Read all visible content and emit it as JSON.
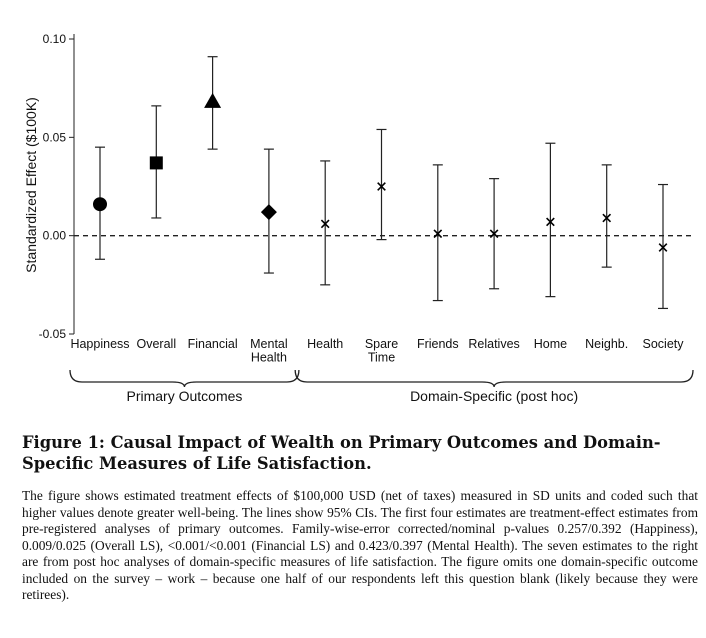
{
  "chart_data": {
    "type": "scatter",
    "subtype": "point-estimate-with-95pct-CI",
    "ylabel": "Standardized Effect ($100K)",
    "xlabel": "",
    "ylim": [
      -0.05,
      0.1
    ],
    "yticks": [
      -0.05,
      0.0,
      0.05,
      0.1
    ],
    "ytick_labels": [
      "-0.05",
      "0.00",
      "0.05",
      "0.10"
    ],
    "reference_line": 0.0,
    "categories": [
      {
        "label": [
          "Happiness"
        ],
        "estimate": 0.016,
        "ci": [
          -0.012,
          0.045
        ],
        "marker": "circle"
      },
      {
        "label": [
          "Overall"
        ],
        "estimate": 0.037,
        "ci": [
          0.009,
          0.066
        ],
        "marker": "square"
      },
      {
        "label": [
          "Financial"
        ],
        "estimate": 0.068,
        "ci": [
          0.044,
          0.091
        ],
        "marker": "triangle"
      },
      {
        "label": [
          "Mental",
          "Health"
        ],
        "estimate": 0.012,
        "ci": [
          -0.019,
          0.044
        ],
        "marker": "diamond"
      },
      {
        "label": [
          "Health"
        ],
        "estimate": 0.006,
        "ci": [
          -0.025,
          0.038
        ],
        "marker": "x"
      },
      {
        "label": [
          "Spare",
          "Time"
        ],
        "estimate": 0.025,
        "ci": [
          -0.002,
          0.054
        ],
        "marker": "x"
      },
      {
        "label": [
          "Friends"
        ],
        "estimate": 0.001,
        "ci": [
          -0.033,
          0.036
        ],
        "marker": "x"
      },
      {
        "label": [
          "Relatives"
        ],
        "estimate": 0.001,
        "ci": [
          -0.027,
          0.029
        ],
        "marker": "x"
      },
      {
        "label": [
          "Home"
        ],
        "estimate": 0.007,
        "ci": [
          -0.031,
          0.047
        ],
        "marker": "x"
      },
      {
        "label": [
          "Neighb."
        ],
        "estimate": 0.009,
        "ci": [
          -0.016,
          0.036
        ],
        "marker": "x"
      },
      {
        "label": [
          "Society"
        ],
        "estimate": -0.006,
        "ci": [
          -0.037,
          0.026
        ],
        "marker": "x"
      }
    ],
    "groups": [
      {
        "label": "Primary Outcomes",
        "from": 0,
        "to": 3
      },
      {
        "label": "Domain-Specific (post hoc)",
        "from": 4,
        "to": 10
      }
    ]
  },
  "caption": {
    "title": "Figure 1: Causal Impact of Wealth on Primary Outcomes and Domain-Specific Measures of Life Satisfaction.",
    "description": "The figure shows estimated treatment effects of $100,000 USD (net of taxes) measured in SD units and coded such that higher values denote greater well-being. The lines show 95% CIs. The first four estimates are treatment-effect estimates from pre-registered analyses of primary outcomes. Family-wise-error corrected/nominal p-values 0.257/0.392 (Happiness), 0.009/0.025 (Overall LS), <0.001/<0.001 (Financial LS) and 0.423/0.397 (Mental Health). The seven estimates to the right are from post hoc analyses of domain-specific measures of life satisfaction. The figure omits one domain-specific outcome included on the survey – work – because one half of our respondents left this question blank (likely because they were retirees)."
  }
}
